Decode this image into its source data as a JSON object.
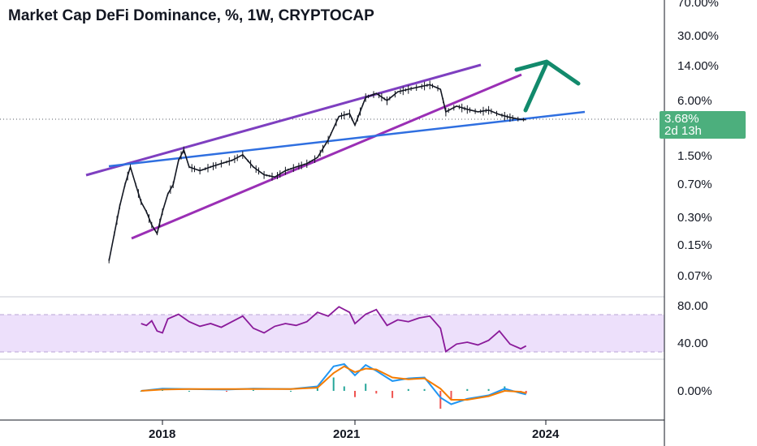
{
  "header": {
    "title": "Market Cap DeFi Dominance, %, 1W, CRYPTOCAP"
  },
  "colors": {
    "background": "#ffffff",
    "candle": "#131722",
    "channel_upper": "#7e3fc0",
    "channel_lower": "#9a2fb5",
    "support_line": "#2f6fe0",
    "arrow": "#128a6c",
    "rsi_line": "#8a1a9a",
    "rsi_band": "#ede0fb",
    "macd_line": "#2196f3",
    "signal_line": "#f57c00",
    "hist_positive": "#26a69a",
    "hist_negative": "#ef5350",
    "price_badge": "#4caf7d",
    "axis_text": "#131722"
  },
  "chart_data": [
    {
      "type": "candlestick",
      "title": "Market Cap DeFi Dominance, %, 1W, CRYPTOCAP",
      "yscale": "log",
      "y_ticks": [
        "70.00%",
        "30.00%",
        "14.00%",
        "6.00%",
        "3.68%",
        "1.50%",
        "0.70%",
        "0.30%",
        "0.15%",
        "0.07%"
      ],
      "x_ticks": [
        "2018",
        "2021",
        "2024"
      ],
      "price_badge": {
        "value": "3.68%",
        "countdown": "2d 13h"
      },
      "close_series": [
        [
          "2017-03",
          0.1
        ],
        [
          "2017-04",
          0.2
        ],
        [
          "2017-05",
          0.4
        ],
        [
          "2017-06",
          0.7
        ],
        [
          "2017-07",
          1.1
        ],
        [
          "2017-08",
          0.7
        ],
        [
          "2017-09",
          0.45
        ],
        [
          "2017-10",
          0.35
        ],
        [
          "2017-11",
          0.25
        ],
        [
          "2017-12",
          0.2
        ],
        [
          "2018-01",
          0.35
        ],
        [
          "2018-02",
          0.55
        ],
        [
          "2018-03",
          0.7
        ],
        [
          "2018-04",
          1.3
        ],
        [
          "2018-05",
          1.7
        ],
        [
          "2018-06",
          1.1
        ],
        [
          "2018-08",
          1.0
        ],
        [
          "2018-10",
          1.1
        ],
        [
          "2018-12",
          1.2
        ],
        [
          "2019-02",
          1.3
        ],
        [
          "2019-04",
          1.5
        ],
        [
          "2019-06",
          1.1
        ],
        [
          "2019-08",
          0.9
        ],
        [
          "2019-10",
          0.85
        ],
        [
          "2019-12",
          1.0
        ],
        [
          "2020-02",
          1.1
        ],
        [
          "2020-04",
          1.2
        ],
        [
          "2020-06",
          1.4
        ],
        [
          "2020-08",
          2.2
        ],
        [
          "2020-10",
          4.0
        ],
        [
          "2020-12",
          4.3
        ],
        [
          "2021-01",
          3.2
        ],
        [
          "2021-03",
          6.5
        ],
        [
          "2021-05",
          7.2
        ],
        [
          "2021-07",
          6.0
        ],
        [
          "2021-09",
          7.5
        ],
        [
          "2021-11",
          8.0
        ],
        [
          "2022-01",
          8.5
        ],
        [
          "2022-03",
          9.0
        ],
        [
          "2022-05",
          8.0
        ],
        [
          "2022-06",
          4.5
        ],
        [
          "2022-08",
          5.2
        ],
        [
          "2022-10",
          4.8
        ],
        [
          "2022-12",
          4.5
        ],
        [
          "2023-02",
          4.7
        ],
        [
          "2023-04",
          4.2
        ],
        [
          "2023-06",
          3.9
        ],
        [
          "2023-08",
          3.7
        ],
        [
          "2023-09",
          3.68
        ]
      ]
    },
    {
      "type": "line",
      "name": "RSI",
      "y_ticks": [
        "80.00",
        "40.00"
      ],
      "band": [
        30,
        70
      ],
      "values": [
        [
          "2017-09",
          60
        ],
        [
          "2017-10",
          58
        ],
        [
          "2017-11",
          63
        ],
        [
          "2017-12",
          52
        ],
        [
          "2018-01",
          50
        ],
        [
          "2018-02",
          65
        ],
        [
          "2018-04",
          70
        ],
        [
          "2018-06",
          62
        ],
        [
          "2018-08",
          57
        ],
        [
          "2018-10",
          60
        ],
        [
          "2018-12",
          56
        ],
        [
          "2019-02",
          62
        ],
        [
          "2019-04",
          68
        ],
        [
          "2019-06",
          55
        ],
        [
          "2019-08",
          50
        ],
        [
          "2019-10",
          57
        ],
        [
          "2019-12",
          60
        ],
        [
          "2020-02",
          58
        ],
        [
          "2020-04",
          62
        ],
        [
          "2020-06",
          72
        ],
        [
          "2020-08",
          68
        ],
        [
          "2020-10",
          78
        ],
        [
          "2020-12",
          72
        ],
        [
          "2021-01",
          60
        ],
        [
          "2021-03",
          70
        ],
        [
          "2021-05",
          75
        ],
        [
          "2021-07",
          58
        ],
        [
          "2021-09",
          64
        ],
        [
          "2021-11",
          62
        ],
        [
          "2022-01",
          66
        ],
        [
          "2022-03",
          68
        ],
        [
          "2022-05",
          55
        ],
        [
          "2022-06",
          30
        ],
        [
          "2022-08",
          38
        ],
        [
          "2022-10",
          40
        ],
        [
          "2022-12",
          37
        ],
        [
          "2023-02",
          42
        ],
        [
          "2023-04",
          52
        ],
        [
          "2023-06",
          38
        ],
        [
          "2023-08",
          33
        ],
        [
          "2023-09",
          36
        ]
      ]
    },
    {
      "type": "line",
      "name": "MACD",
      "y_ticks": [
        "0.00%"
      ],
      "series": [
        {
          "values": [
            [
              "2017-09",
              0.0
            ],
            [
              "2018-01",
              0.05
            ],
            [
              "2018-06",
              0.04
            ],
            [
              "2019-01",
              0.03
            ],
            [
              "2019-06",
              0.05
            ],
            [
              "2020-01",
              0.04
            ],
            [
              "2020-06",
              0.1
            ],
            [
              "2020-09",
              0.55
            ],
            [
              "2020-11",
              0.6
            ],
            [
              "2021-01",
              0.35
            ],
            [
              "2021-03",
              0.58
            ],
            [
              "2021-05",
              0.45
            ],
            [
              "2021-08",
              0.22
            ],
            [
              "2021-11",
              0.28
            ],
            [
              "2022-02",
              0.3
            ],
            [
              "2022-05",
              -0.15
            ],
            [
              "2022-07",
              -0.3
            ],
            [
              "2022-10",
              -0.18
            ],
            [
              "2023-02",
              -0.1
            ],
            [
              "2023-05",
              0.05
            ],
            [
              "2023-08",
              -0.05
            ],
            [
              "2023-09",
              -0.08
            ]
          ]
        },
        {
          "values": [
            [
              "2017-09",
              0.0
            ],
            [
              "2018-01",
              0.03
            ],
            [
              "2018-06",
              0.04
            ],
            [
              "2019-01",
              0.04
            ],
            [
              "2019-06",
              0.04
            ],
            [
              "2020-01",
              0.04
            ],
            [
              "2020-06",
              0.07
            ],
            [
              "2020-09",
              0.4
            ],
            [
              "2020-11",
              0.55
            ],
            [
              "2021-01",
              0.42
            ],
            [
              "2021-03",
              0.5
            ],
            [
              "2021-05",
              0.48
            ],
            [
              "2021-08",
              0.3
            ],
            [
              "2021-11",
              0.26
            ],
            [
              "2022-02",
              0.28
            ],
            [
              "2022-05",
              0.05
            ],
            [
              "2022-07",
              -0.2
            ],
            [
              "2022-10",
              -0.2
            ],
            [
              "2023-02",
              -0.12
            ],
            [
              "2023-05",
              0.0
            ],
            [
              "2023-08",
              -0.02
            ],
            [
              "2023-09",
              -0.05
            ]
          ]
        }
      ]
    }
  ]
}
